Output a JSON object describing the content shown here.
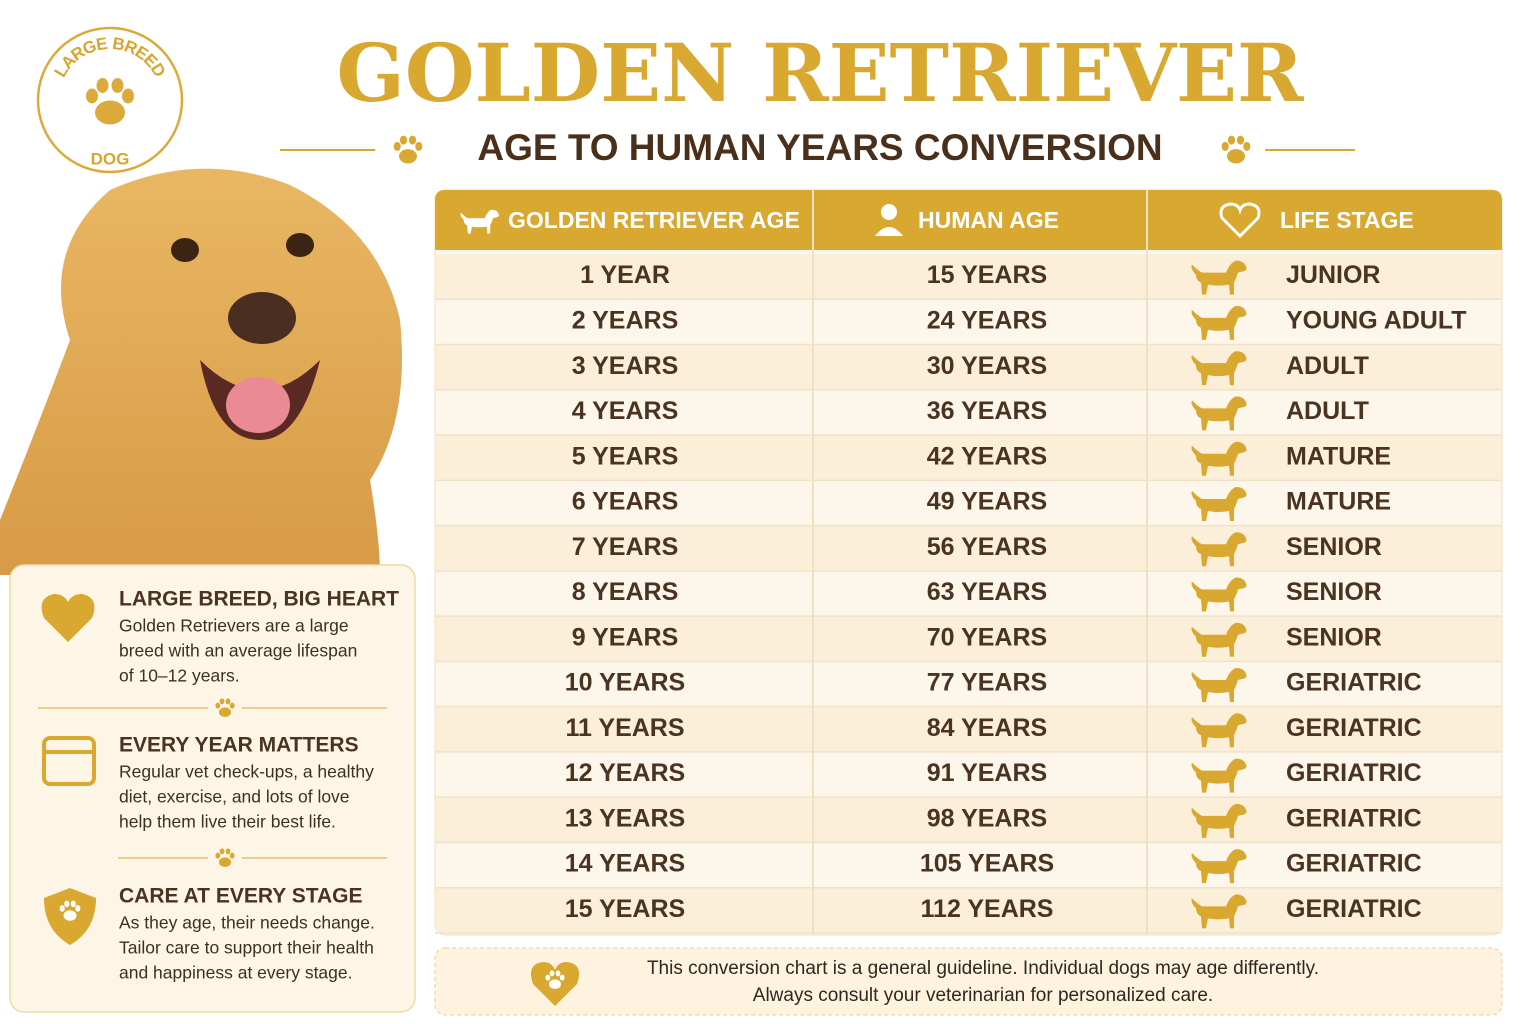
{
  "header": {
    "badge": {
      "top": "LARGE BREED",
      "bottom": "DOG"
    },
    "title": "GOLDEN RETRIEVER",
    "subtitle": "AGE TO HUMAN YEARS CONVERSION"
  },
  "table": {
    "columns": [
      "GOLDEN RETRIEVER AGE",
      "HUMAN AGE",
      "LIFE STAGE"
    ],
    "rows": [
      [
        "1 YEAR",
        "15 YEARS",
        "JUNIOR"
      ],
      [
        "2 YEARS",
        "24 YEARS",
        "YOUNG ADULT"
      ],
      [
        "3 YEARS",
        "30 YEARS",
        "ADULT"
      ],
      [
        "4 YEARS",
        "36 YEARS",
        "ADULT"
      ],
      [
        "5 YEARS",
        "42 YEARS",
        "MATURE"
      ],
      [
        "6 YEARS",
        "49 YEARS",
        "MATURE"
      ],
      [
        "7 YEARS",
        "56 YEARS",
        "SENIOR"
      ],
      [
        "8 YEARS",
        "63 YEARS",
        "SENIOR"
      ],
      [
        "9 YEARS",
        "70 YEARS",
        "SENIOR"
      ],
      [
        "10 YEARS",
        "77 YEARS",
        "GERIATRIC"
      ],
      [
        "11 YEARS",
        "84 YEARS",
        "GERIATRIC"
      ],
      [
        "12 YEARS",
        "91 YEARS",
        "GERIATRIC"
      ],
      [
        "13 YEARS",
        "98 YEARS",
        "GERIATRIC"
      ],
      [
        "14 YEARS",
        "105 YEARS",
        "GERIATRIC"
      ],
      [
        "15 YEARS",
        "112 YEARS",
        "GERIATRIC"
      ]
    ]
  },
  "info": [
    {
      "title": "LARGE BREED, BIG HEART",
      "lines": [
        "Golden Retrievers are a large",
        "breed with an average lifespan",
        "of 10–12 years."
      ]
    },
    {
      "title": "EVERY YEAR MATTERS",
      "lines": [
        "Regular vet check-ups, a healthy",
        "diet, exercise, and lots of love",
        "help them live their best life."
      ]
    },
    {
      "title": "CARE AT EVERY STAGE",
      "lines": [
        "As they age, their needs change.",
        "Tailor care to support their health",
        "and happiness at every stage."
      ]
    }
  ],
  "footer": {
    "lines": [
      "This conversion chart is a general guideline. Individual dogs may age differently.",
      "Always consult your veterinarian for personalized care."
    ]
  }
}
